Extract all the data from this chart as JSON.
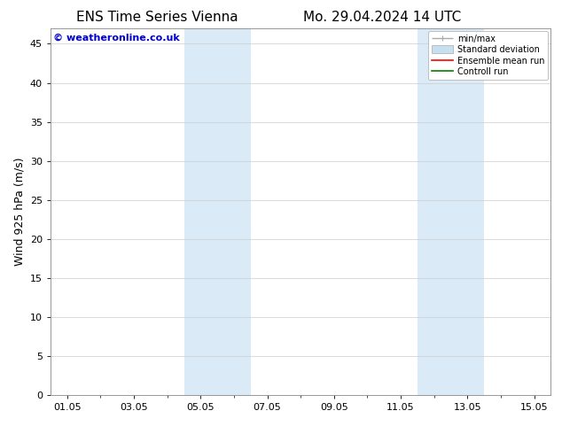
{
  "title_left": "ENS Time Series Vienna",
  "title_right": "Mo. 29.04.2024 14 UTC",
  "ylabel": "Wind 925 hPa (m/s)",
  "watermark": "© weatheronline.co.uk",
  "watermark_color": "#0000cc",
  "ylim": [
    0,
    47
  ],
  "yticks": [
    0,
    5,
    10,
    15,
    20,
    25,
    30,
    35,
    40,
    45
  ],
  "xtick_labels": [
    "01.05",
    "03.05",
    "05.05",
    "07.05",
    "09.05",
    "11.05",
    "13.05",
    "15.05"
  ],
  "xtick_positions": [
    0,
    2,
    4,
    6,
    8,
    10,
    12,
    14
  ],
  "xmin": -0.5,
  "xmax": 14.5,
  "shaded_bands": [
    {
      "xmin": 3.5,
      "xmax": 5.5,
      "color": "#daeaf7"
    },
    {
      "xmin": 10.5,
      "xmax": 12.5,
      "color": "#daeaf7"
    }
  ],
  "legend_items": [
    {
      "label": "min/max",
      "color": "#aaaaaa",
      "lw": 1.0,
      "style": "minmax"
    },
    {
      "label": "Standard deviation",
      "color": "#c8dff0",
      "lw": 8,
      "style": "band"
    },
    {
      "label": "Ensemble mean run",
      "color": "#ff0000",
      "lw": 1.2,
      "style": "line"
    },
    {
      "label": "Controll run",
      "color": "#008000",
      "lw": 1.2,
      "style": "line"
    }
  ],
  "bg_color": "#ffffff",
  "plot_bg_color": "#ffffff",
  "grid_color": "#cccccc",
  "title_fontsize": 11,
  "ylabel_fontsize": 9,
  "tick_fontsize": 8,
  "watermark_fontsize": 8,
  "legend_fontsize": 7
}
